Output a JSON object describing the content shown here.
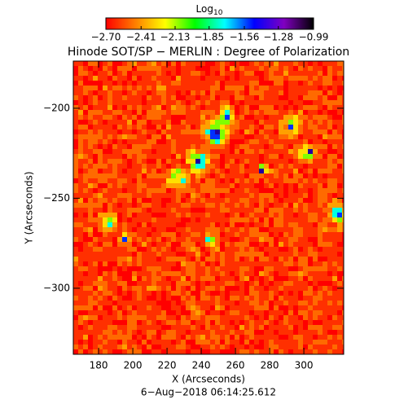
{
  "chart_data": {
    "type": "image",
    "title": "Hinode SOT/SP − MERLIN : Degree of Polarization",
    "x_label": "X (Arcseconds)",
    "y_label": "Y (Arcseconds)",
    "date": "6−Aug−2018 06:14:25.612",
    "xlim": [
      165.2,
      323.3
    ],
    "xticks": [
      180,
      200,
      220,
      240,
      260,
      280,
      300
    ],
    "ylim": [
      -336.7,
      -173.8
    ],
    "yticks": [
      {
        "value": -200,
        "label": "−200"
      },
      {
        "value": -250,
        "label": "−250"
      },
      {
        "value": -300,
        "label": "−300"
      }
    ],
    "colorbar": {
      "label": "Log",
      "label_subscript": "10",
      "clim": [
        -2.7,
        -0.99
      ],
      "ticks": [
        {
          "value": -2.7,
          "label": "−2.70"
        },
        {
          "value": -2.41,
          "label": "−2.41"
        },
        {
          "value": -2.13,
          "label": "−2.13"
        },
        {
          "value": -1.85,
          "label": "−1.85"
        },
        {
          "value": -1.56,
          "label": "−1.56"
        },
        {
          "value": -1.28,
          "label": "−1.28"
        },
        {
          "value": -0.99,
          "label": "−0.99"
        }
      ],
      "colors": [
        "#ff0000",
        "#ff7f00",
        "#ffff00",
        "#00ff00",
        "#00ffff",
        "#0000ff",
        "#8000c0",
        "#000000"
      ]
    }
  }
}
